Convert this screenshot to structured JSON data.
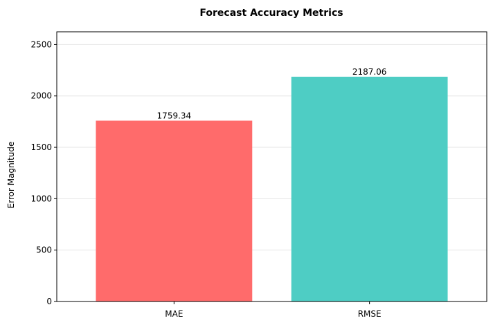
{
  "chart_data": {
    "type": "bar",
    "title": "Forecast Accuracy Metrics",
    "xlabel": "",
    "ylabel": "Error Magnitude",
    "categories": [
      "MAE",
      "RMSE"
    ],
    "values": [
      1759.34,
      2187.06
    ],
    "value_labels": [
      "1759.34",
      "2187.06"
    ],
    "colors": [
      "#ff6b6b",
      "#4ecdc4"
    ],
    "ylim": [
      0,
      2624
    ],
    "yticks": [
      0,
      500,
      1000,
      1500,
      2000,
      2500
    ],
    "ytick_labels": [
      "0",
      "500",
      "1000",
      "1500",
      "2000",
      "2500"
    ],
    "grid": "y",
    "legend": "none"
  }
}
